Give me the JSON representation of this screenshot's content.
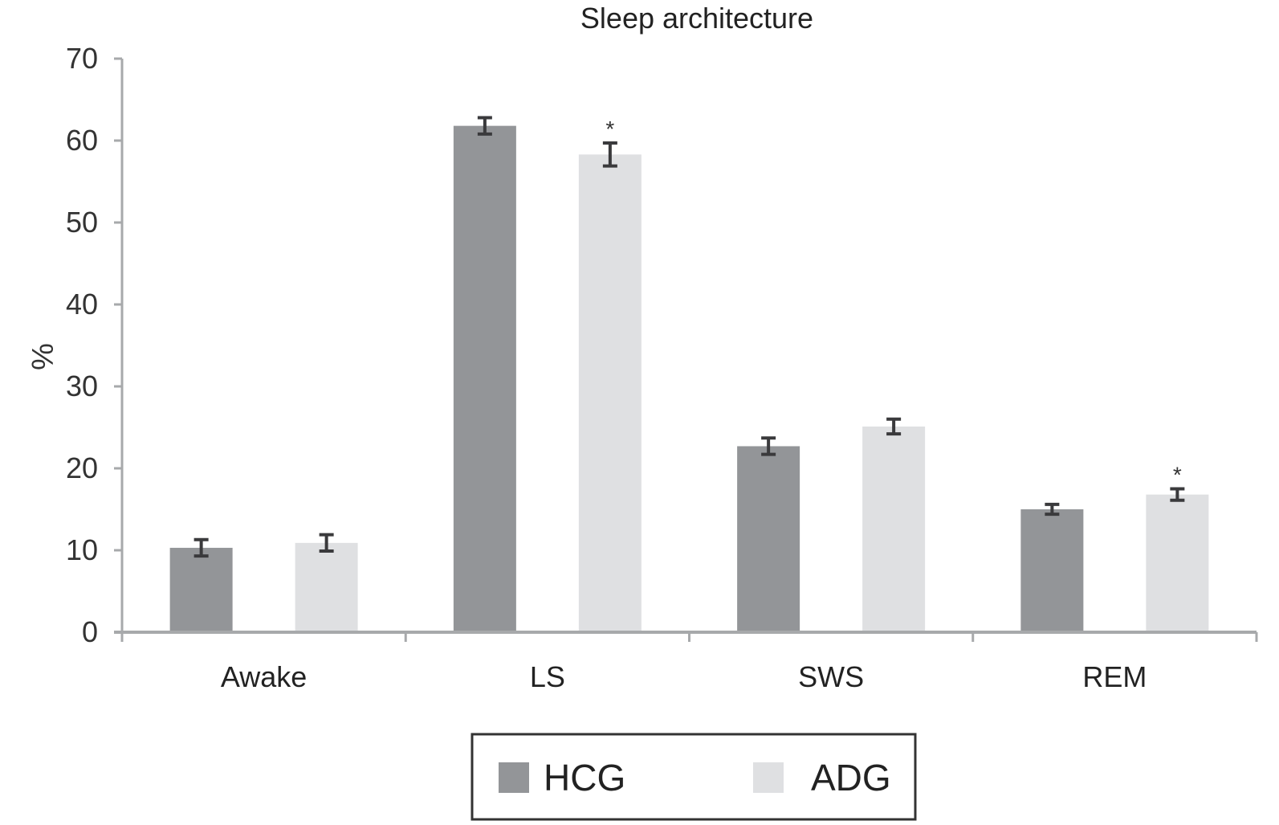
{
  "chart_data": {
    "type": "bar",
    "title": "Sleep architecture",
    "xlabel": "",
    "ylabel": "%",
    "ylim": [
      0,
      70
    ],
    "yticks": [
      0,
      10,
      20,
      30,
      40,
      50,
      60,
      70
    ],
    "categories": [
      "Awake",
      "LS",
      "SWS",
      "REM"
    ],
    "grid": false,
    "legend_position": "bottom-center",
    "series": [
      {
        "name": "HCG",
        "color": "#939598",
        "values": [
          10.3,
          61.8,
          22.7,
          15.0
        ],
        "errors": [
          1.0,
          1.0,
          1.0,
          0.6
        ],
        "significance": [
          "",
          "",
          "",
          ""
        ]
      },
      {
        "name": "ADG",
        "color": "#dfe0e2",
        "values": [
          10.9,
          58.3,
          25.1,
          16.8
        ],
        "errors": [
          1.0,
          1.4,
          0.9,
          0.7
        ],
        "significance": [
          "",
          "*",
          "",
          "*"
        ]
      }
    ]
  }
}
